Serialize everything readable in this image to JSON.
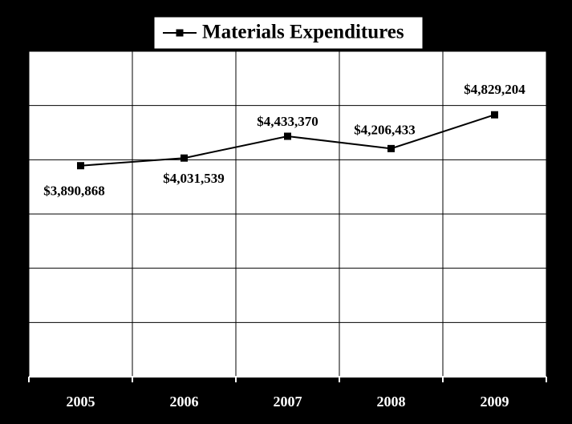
{
  "chart_data": {
    "type": "line",
    "legend": "Materials Expenditures",
    "categories": [
      "2005",
      "2006",
      "2007",
      "2008",
      "2009"
    ],
    "series": [
      {
        "name": "Materials Expenditures",
        "color": "#000000",
        "values": [
          3890868,
          4031539,
          4433370,
          4206433,
          4829204
        ],
        "value_labels": [
          "$3,890,868",
          "$4,031,539",
          "$4,433,370",
          "$4,206,433",
          "$4,829,204"
        ]
      }
    ],
    "ylim": [
      0,
      6000000
    ],
    "yticks": [
      0,
      1000000,
      2000000,
      3000000,
      4000000,
      5000000,
      6000000
    ],
    "grid": true
  }
}
